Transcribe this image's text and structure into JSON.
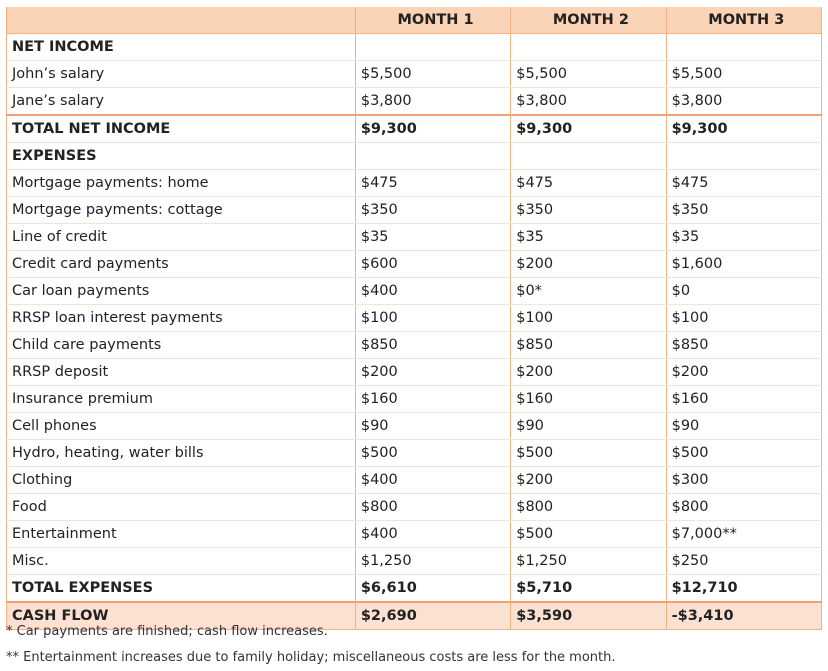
{
  "headers": [
    "",
    "MONTH 1",
    "MONTH 2",
    "MONTH 3"
  ],
  "rows": [
    {
      "type": "section",
      "label": "NET INCOME",
      "values": [
        "",
        "",
        ""
      ]
    },
    {
      "type": "row",
      "label": "John’s salary",
      "values": [
        "$5,500",
        "$5,500",
        "$5,500"
      ]
    },
    {
      "type": "row",
      "label": "Jane’s salary",
      "values": [
        "$3,800",
        "$3,800",
        "$3,800"
      ]
    },
    {
      "type": "total",
      "label": "TOTAL NET INCOME",
      "values": [
        "$9,300",
        "$9,300",
        "$9,300"
      ]
    },
    {
      "type": "section",
      "label": "EXPENSES",
      "values": [
        "",
        "",
        ""
      ]
    },
    {
      "type": "row",
      "label": "Mortgage payments: home",
      "values": [
        "$475",
        "$475",
        "$475"
      ]
    },
    {
      "type": "row",
      "label": "Mortgage payments: cottage",
      "values": [
        "$350",
        "$350",
        "$350"
      ]
    },
    {
      "type": "row",
      "label": "Line of credit",
      "values": [
        "$35",
        "$35",
        "$35"
      ]
    },
    {
      "type": "row",
      "label": "Credit card payments",
      "values": [
        "$600",
        "$200",
        "$1,600"
      ]
    },
    {
      "type": "row",
      "label": "Car loan payments",
      "values": [
        "$400",
        "$0*",
        "$0"
      ]
    },
    {
      "type": "row",
      "label": "RRSP loan interest payments",
      "values": [
        "$100",
        "$100",
        "$100"
      ]
    },
    {
      "type": "row",
      "label": "Child care payments",
      "values": [
        "$850",
        "$850",
        "$850"
      ]
    },
    {
      "type": "row",
      "label": "RRSP deposit",
      "values": [
        "$200",
        "$200",
        "$200"
      ]
    },
    {
      "type": "row",
      "label": "Insurance premium",
      "values": [
        "$160",
        "$160",
        "$160"
      ]
    },
    {
      "type": "row",
      "label": "Cell phones",
      "values": [
        "$90",
        "$90",
        "$90"
      ]
    },
    {
      "type": "row",
      "label": "Hydro, heating, water bills",
      "values": [
        "$500",
        "$500",
        "$500"
      ]
    },
    {
      "type": "row",
      "label": "Clothing",
      "values": [
        "$400",
        "$200",
        "$300"
      ]
    },
    {
      "type": "row",
      "label": "Food",
      "values": [
        "$800",
        "$800",
        "$800"
      ]
    },
    {
      "type": "row",
      "label": "Entertainment",
      "values": [
        "$400",
        "$500",
        "$7,000**"
      ]
    },
    {
      "type": "row",
      "label": "Misc.",
      "values": [
        "$1,250",
        "$1,250",
        "$250"
      ]
    },
    {
      "type": "section",
      "label": "TOTAL EXPENSES",
      "values": [
        "$6,610",
        "$5,710",
        "$12,710"
      ]
    },
    {
      "type": "cashflow",
      "label": "CASH FLOW",
      "values": [
        "$2,690",
        "$3,590",
        "-$3,410"
      ]
    }
  ],
  "footnotes": [
    "* Car payments are finished; cash flow increases.",
    "** Entertainment increases due to family holiday; miscellaneous costs are less for the month."
  ]
}
